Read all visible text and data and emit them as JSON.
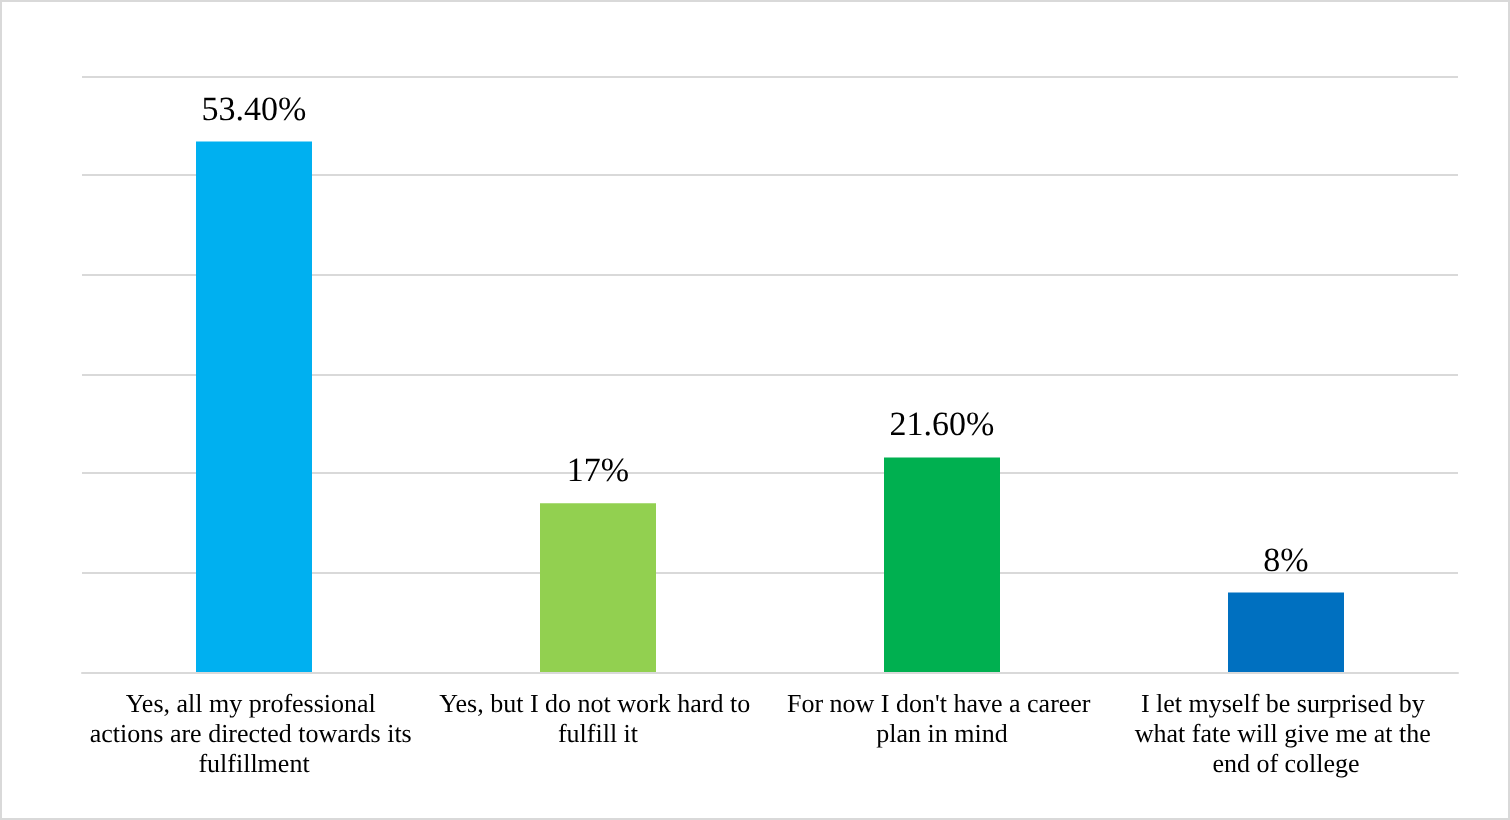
{
  "chart_data": {
    "type": "bar",
    "categories": [
      "Yes, all my professional actions are directed towards its fulfillment",
      "Yes, but I do not work hard to fulfill it",
      "For now I don't have a career plan in mind",
      "I let myself be surprised by what fate will give me at the end of college"
    ],
    "values": [
      53.4,
      17,
      21.6,
      8
    ],
    "value_labels": [
      "53.40%",
      "17%",
      "21.60%",
      "8%"
    ],
    "colors": [
      "#00b0f0",
      "#92d050",
      "#00b050",
      "#0070c0"
    ],
    "ylim": [
      0,
      60
    ],
    "yticks": [
      {
        "value": 0,
        "label": null
      },
      {
        "value": 10,
        "label": null
      },
      {
        "value": 20,
        "label": null
      },
      {
        "value": 30,
        "label": null
      },
      {
        "value": 40,
        "label": null
      },
      {
        "value": 50,
        "label": null
      },
      {
        "value": 60,
        "label": null
      }
    ],
    "tick_labels": "x",
    "grid": "y"
  }
}
